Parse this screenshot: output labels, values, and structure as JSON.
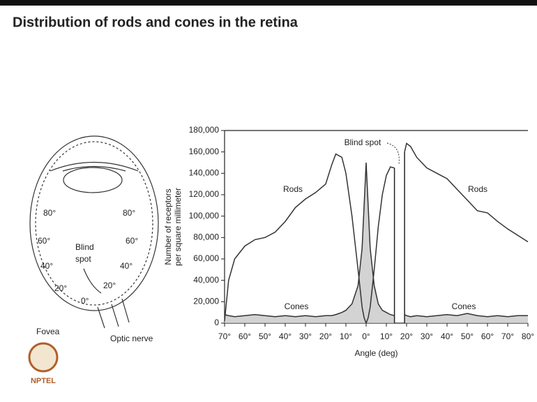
{
  "slide_title": "Distribution of rods and cones in the retina",
  "chart_data": {
    "type": "line",
    "y_label_lines": [
      "Number of receptors",
      "per square millimeter"
    ],
    "x_label": "Angle (deg)",
    "annotations": [
      "Rods",
      "Rods",
      "Cones",
      "Cones",
      "Blind spot"
    ],
    "x": [
      -70,
      -68,
      -65,
      -60,
      -55,
      -50,
      -45,
      -40,
      -35,
      -30,
      -25,
      -20,
      -17,
      -15,
      -12,
      -10,
      -7,
      -4,
      -2,
      -1,
      0,
      1,
      2,
      4,
      6,
      8,
      10,
      12,
      14,
      16,
      19,
      20,
      22,
      25,
      30,
      35,
      40,
      45,
      50,
      55,
      60,
      65,
      70,
      75,
      80
    ],
    "series": [
      {
        "name": "Rods",
        "color": "#333333",
        "values": [
          2000,
          40000,
          60000,
          72000,
          78000,
          80000,
          85000,
          95000,
          108000,
          116000,
          122000,
          130000,
          148000,
          158000,
          155000,
          140000,
          100000,
          50000,
          15000,
          5000,
          0,
          5000,
          15000,
          50000,
          90000,
          120000,
          138000,
          146000,
          145000,
          null,
          160000,
          168000,
          165000,
          155000,
          145000,
          140000,
          135000,
          125000,
          115000,
          105000,
          103000,
          95000,
          88000,
          82000,
          76000
        ]
      },
      {
        "name": "Cones",
        "color": "#333333",
        "values": [
          8000,
          7000,
          6000,
          7000,
          8000,
          7000,
          6000,
          7000,
          6000,
          7000,
          6000,
          7000,
          7000,
          8000,
          10000,
          12000,
          18000,
          35000,
          70000,
          110000,
          150000,
          110000,
          70000,
          35000,
          18000,
          12000,
          10000,
          8000,
          7000,
          null,
          8000,
          7000,
          6000,
          7000,
          6000,
          7000,
          8000,
          7000,
          9000,
          7000,
          6000,
          7000,
          6000,
          7000,
          7000
        ]
      }
    ],
    "xlim": [
      -70,
      80
    ],
    "xticks": [
      {
        "value": -70,
        "label": "70°"
      },
      {
        "value": -60,
        "label": "60°"
      },
      {
        "value": -50,
        "label": "50°"
      },
      {
        "value": -40,
        "label": "40°"
      },
      {
        "value": -30,
        "label": "30°"
      },
      {
        "value": -20,
        "label": "20°"
      },
      {
        "value": -10,
        "label": "10°"
      },
      {
        "value": 0,
        "label": "0°"
      },
      {
        "value": 10,
        "label": "10°"
      },
      {
        "value": 20,
        "label": "20°"
      },
      {
        "value": 30,
        "label": "30°"
      },
      {
        "value": 40,
        "label": "40°"
      },
      {
        "value": 50,
        "label": "50°"
      },
      {
        "value": 60,
        "label": "60°"
      },
      {
        "value": 70,
        "label": "70°"
      },
      {
        "value": 80,
        "label": "80°"
      }
    ],
    "ylim": [
      0,
      180000
    ],
    "yticks": [
      0,
      {
        "value": 20000,
        "label": "20,000"
      },
      {
        "value": 40000,
        "label": "40,000"
      },
      {
        "value": 60000,
        "label": "60,000"
      },
      {
        "value": 80000,
        "label": "80,000"
      },
      {
        "value": 100000,
        "label": "100,000"
      },
      {
        "value": 120000,
        "label": "120,000"
      },
      {
        "value": 140000,
        "label": "140,000"
      },
      {
        "value": 160000,
        "label": "160,000"
      },
      {
        "value": 180000,
        "label": "180,000"
      }
    ],
    "area_fill": "#c8c8c8"
  },
  "eye_diagram": {
    "labels": [
      "80°",
      "80°",
      "60°",
      "60°",
      "40°",
      "40°",
      "20°",
      "20°",
      "0°",
      "Blind",
      "spot",
      "Fovea",
      "Optic nerve"
    ]
  },
  "logo": "NPTEL"
}
